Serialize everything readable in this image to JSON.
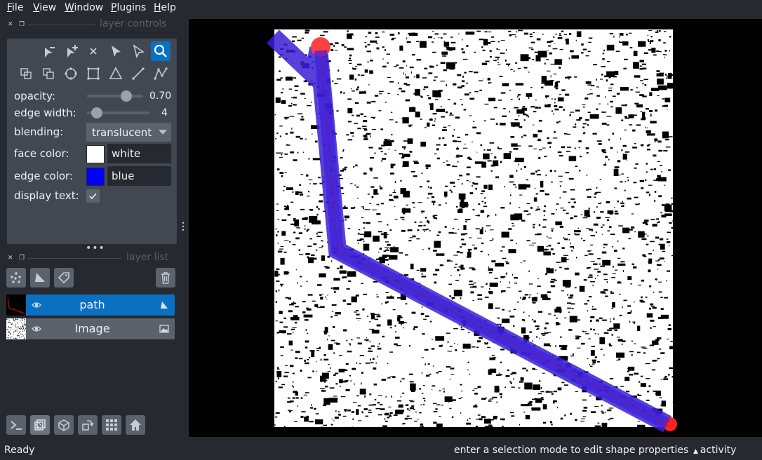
{
  "menu": {
    "items": [
      "File",
      "View",
      "Window",
      "Plugins",
      "Help"
    ]
  },
  "layer_controls": {
    "title": "layer controls",
    "opacity": {
      "label": "opacity:",
      "value": "0.70",
      "fraction": 0.7
    },
    "edge_width": {
      "label": "edge width:",
      "value": "4",
      "fraction": 0.05
    },
    "blending": {
      "label": "blending:",
      "value": "translucent"
    },
    "face_color": {
      "label": "face color:",
      "value": "white",
      "swatch": "#ffffff"
    },
    "edge_color": {
      "label": "edge color:",
      "value": "blue",
      "swatch": "#0000ff"
    },
    "display_text": {
      "label": "display text:",
      "checked": true
    },
    "tools": [
      "remove-vertex-icon",
      "add-vertex-icon",
      "delete-shape-icon",
      "select-icon",
      "direct-select-icon",
      "zoom-pan-icon",
      "move-back-icon",
      "move-front-icon",
      "ellipse-icon",
      "rectangle-icon",
      "polygon-icon",
      "line-icon",
      "path-icon"
    ]
  },
  "layer_list": {
    "title": "layer list",
    "layers": [
      {
        "name": "path",
        "selected": true,
        "type": "shapes"
      },
      {
        "name": "Image",
        "selected": false,
        "type": "image"
      }
    ]
  },
  "status": {
    "left": "Ready",
    "message": "enter a selection mode to edit shape properties",
    "activity": "activity"
  },
  "colors": {
    "accent": "#0a71c2",
    "path_edge": "#0000ff",
    "path_selected": "#ff0000",
    "panel": "#414851",
    "background": "#262930"
  }
}
